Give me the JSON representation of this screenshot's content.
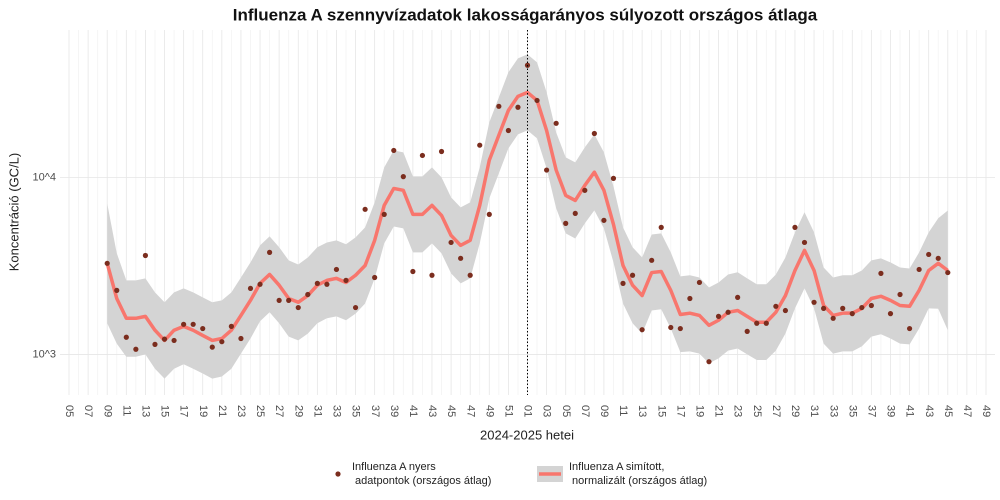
{
  "chart_data": {
    "type": "line",
    "title": "Influenza A szennyvízadatok lakosságarányos súlyozott országos átlaga",
    "x_label": "2024-2025 hetei",
    "y_label": "Koncentráció (GC/L)",
    "y_scale": "log",
    "grid": true,
    "vline_at": "01",
    "legend": "bottom",
    "ylim": [
      590,
      68000
    ],
    "yticks": [
      {
        "value": 1000,
        "label": "10^3"
      },
      {
        "value": 10000,
        "label": "10^4"
      }
    ],
    "categories": [
      "05",
      null,
      "07",
      null,
      "09",
      null,
      "11",
      null,
      "13",
      null,
      "15",
      null,
      "17",
      null,
      "19",
      null,
      "21",
      null,
      "23",
      null,
      "25",
      null,
      "27",
      null,
      "29",
      null,
      "31",
      null,
      "33",
      null,
      "35",
      null,
      "37",
      null,
      "39",
      null,
      "41",
      null,
      "43",
      null,
      "45",
      null,
      "47",
      null,
      "49",
      null,
      "51",
      null,
      "01",
      null,
      "03",
      null,
      "05",
      null,
      "07",
      null,
      "09",
      null,
      "11",
      null,
      "13",
      null,
      "15",
      null,
      "17",
      null,
      "19",
      null,
      "21",
      null,
      "23",
      null,
      "25",
      null,
      "27",
      null,
      "29",
      null,
      "31",
      null,
      "33",
      null,
      "35",
      null,
      "37",
      null,
      "39",
      null,
      "41",
      null,
      "43",
      null,
      "45",
      null,
      "47",
      null,
      "49"
    ],
    "series": [
      {
        "name": "Influenza A nyers\n adatpontok (országos átlag)",
        "type": "scatter",
        "color": "#7b2d1e",
        "values": [
          null,
          null,
          null,
          null,
          3270,
          2300,
          1250,
          1070,
          3620,
          1140,
          1220,
          1200,
          1480,
          1480,
          1400,
          1100,
          1180,
          1440,
          1230,
          2360,
          2490,
          3770,
          2020,
          2020,
          1840,
          2180,
          2520,
          2490,
          3020,
          2620,
          1840,
          6600,
          2720,
          6180,
          14200,
          10100,
          2940,
          13300,
          2800,
          14000,
          4290,
          3490,
          2800,
          15200,
          6180,
          25200,
          18400,
          24900,
          43000,
          27200,
          11000,
          20200,
          5500,
          6260,
          8450,
          17700,
          5720,
          9870,
          2520,
          2800,
          1380,
          3400,
          5220,
          1420,
          1400,
          2070,
          2550,
          910,
          1640,
          1730,
          2100,
          1350,
          1500,
          1500,
          1870,
          1770,
          5220,
          4290,
          1970,
          1820,
          1600,
          1820,
          1700,
          1840,
          1890,
          2870,
          1700,
          2180,
          1400,
          3020,
          3670,
          3490,
          2900,
          null,
          null,
          null,
          null
        ]
      },
      {
        "name": "Influenza A simított,\n normalizált (országos átlag)",
        "type": "line",
        "color": "#f8766d",
        "band_color": "#d4d4d4",
        "values": [
          null,
          null,
          null,
          null,
          3270,
          2070,
          1600,
          1600,
          1640,
          1370,
          1200,
          1370,
          1440,
          1370,
          1280,
          1200,
          1230,
          1370,
          1660,
          2020,
          2520,
          2830,
          2460,
          2070,
          1970,
          2150,
          2460,
          2620,
          2690,
          2550,
          2800,
          3180,
          4410,
          6950,
          8660,
          8450,
          6180,
          6180,
          6950,
          6100,
          4700,
          4130,
          4410,
          6950,
          12500,
          17300,
          23900,
          28700,
          30200,
          27200,
          18400,
          11000,
          7910,
          7410,
          9010,
          10700,
          8450,
          5430,
          3180,
          2460,
          2150,
          2900,
          2940,
          2300,
          1680,
          1710,
          1660,
          1460,
          1560,
          1730,
          1770,
          1640,
          1520,
          1520,
          1730,
          2150,
          2980,
          3870,
          2980,
          1890,
          1660,
          1710,
          1710,
          1820,
          2070,
          2130,
          2020,
          1890,
          1870,
          2300,
          2980,
          3270,
          2980,
          null,
          null,
          null,
          null
        ],
        "lower": [
          null,
          null,
          null,
          null,
          1500,
          1150,
          970,
          970,
          1000,
          830,
          730,
          830,
          880,
          830,
          780,
          730,
          750,
          830,
          1010,
          1230,
          1540,
          1730,
          1500,
          1260,
          1200,
          1310,
          1500,
          1600,
          1640,
          1560,
          1700,
          1940,
          2690,
          4240,
          5280,
          5150,
          3770,
          3770,
          4240,
          3720,
          2870,
          2520,
          2690,
          4240,
          7610,
          10530,
          14590,
          17500,
          18420,
          16610,
          11250,
          6690,
          4830,
          4520,
          5500,
          6510,
          5150,
          3310,
          1940,
          1500,
          1310,
          1770,
          1800,
          1400,
          1030,
          1040,
          1010,
          890,
          950,
          1050,
          1080,
          1000,
          930,
          930,
          1050,
          1310,
          1820,
          2360,
          1820,
          1150,
          1010,
          1040,
          1040,
          1110,
          1260,
          1300,
          1230,
          1150,
          1140,
          1400,
          1820,
          1810,
          1370,
          null,
          null,
          null,
          null
        ],
        "upper": [
          null,
          null,
          null,
          null,
          7120,
          3730,
          2620,
          2620,
          2690,
          2240,
          1970,
          2240,
          2360,
          2240,
          2100,
          1970,
          2020,
          2240,
          2720,
          3310,
          4130,
          4640,
          4030,
          3400,
          3220,
          3530,
          4030,
          4290,
          4410,
          4190,
          4580,
          5220,
          7230,
          11390,
          14200,
          13850,
          10140,
          10140,
          11390,
          10000,
          7710,
          6770,
          7230,
          11390,
          20450,
          28320,
          39230,
          47050,
          49530,
          44660,
          30240,
          17970,
          12970,
          12160,
          14780,
          17500,
          13850,
          8900,
          5220,
          4030,
          3530,
          4760,
          4830,
          3770,
          2760,
          2800,
          2720,
          2390,
          2550,
          2830,
          2910,
          2690,
          2490,
          2490,
          2830,
          3530,
          4890,
          6350,
          4890,
          3100,
          2720,
          2800,
          2800,
          2980,
          3400,
          3490,
          3310,
          3100,
          3060,
          3770,
          4890,
          5880,
          6500,
          null,
          null,
          null,
          null
        ]
      }
    ]
  }
}
